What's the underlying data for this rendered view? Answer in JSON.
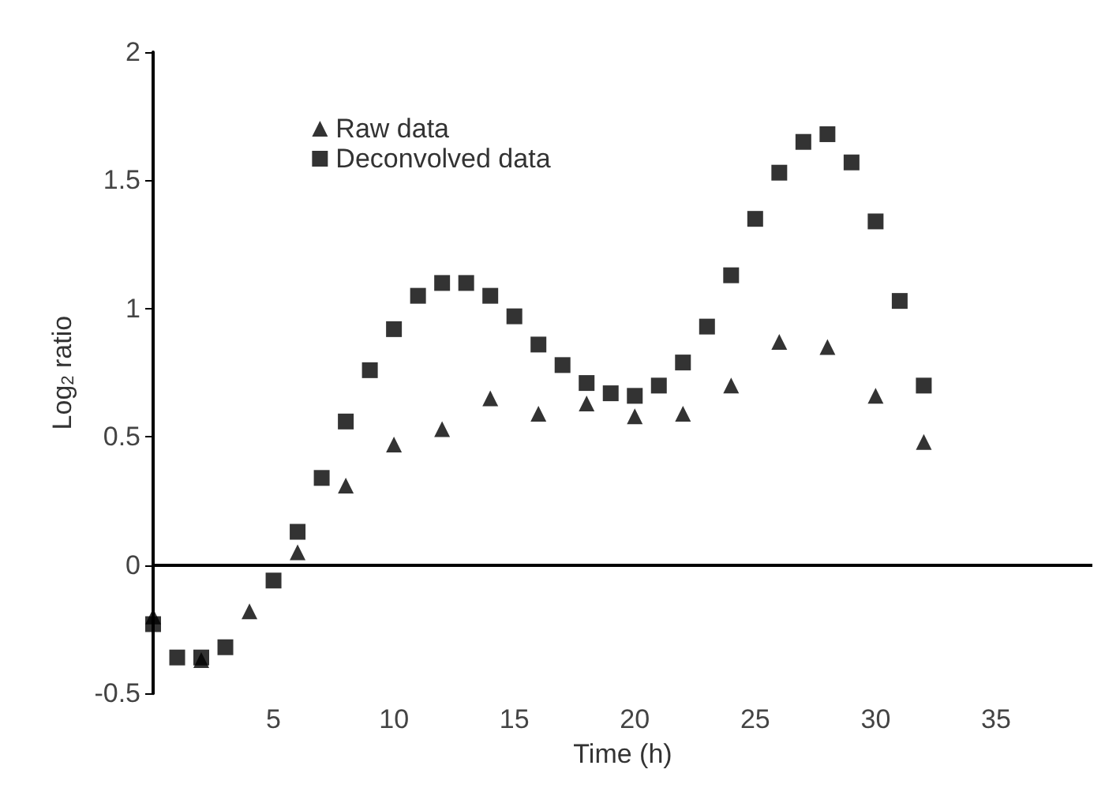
{
  "chart_data": {
    "type": "scatter",
    "xlabel": "Time (h)",
    "ylabel": "Log$_{2}$ ratio",
    "xlim": [
      0,
      39
    ],
    "xticks": [
      5,
      10,
      15,
      20,
      25,
      30,
      35
    ],
    "ylim": [
      -0.5,
      2
    ],
    "yticks": [
      {
        "value": -0.5,
        "label": "-0.5"
      },
      0,
      0.5,
      1,
      1.5,
      2
    ],
    "legend": "top left",
    "series": [
      {
        "name": "Raw data",
        "color": "#000000",
        "marker": "triangle",
        "x": [
          0,
          2,
          4,
          6,
          8,
          10,
          12,
          14,
          16,
          18,
          20,
          22,
          24,
          26,
          28,
          30,
          32
        ],
        "values": [
          -0.2,
          -0.37,
          -0.18,
          0.05,
          0.31,
          0.47,
          0.53,
          0.65,
          0.59,
          0.63,
          0.58,
          0.59,
          0.7,
          0.87,
          0.85,
          0.66,
          0.48
        ]
      },
      {
        "name": "Deconvolved data",
        "color": "#000000",
        "marker": "square",
        "x": [
          0,
          1,
          2,
          3,
          5,
          6,
          7,
          8,
          9,
          10,
          11,
          12,
          13,
          14,
          15,
          16,
          17,
          18,
          19,
          20,
          21,
          22,
          23,
          24,
          25,
          26,
          27,
          28,
          29,
          30,
          31,
          32
        ],
        "values": [
          -0.23,
          -0.36,
          -0.36,
          -0.32,
          -0.06,
          0.13,
          0.34,
          0.56,
          0.76,
          0.92,
          1.05,
          1.1,
          1.1,
          1.05,
          0.97,
          0.86,
          0.78,
          0.71,
          0.67,
          0.66,
          0.7,
          0.79,
          0.93,
          1.13,
          1.35,
          1.53,
          1.65,
          1.68,
          1.57,
          1.34,
          1.03,
          0.7
        ]
      }
    ]
  }
}
